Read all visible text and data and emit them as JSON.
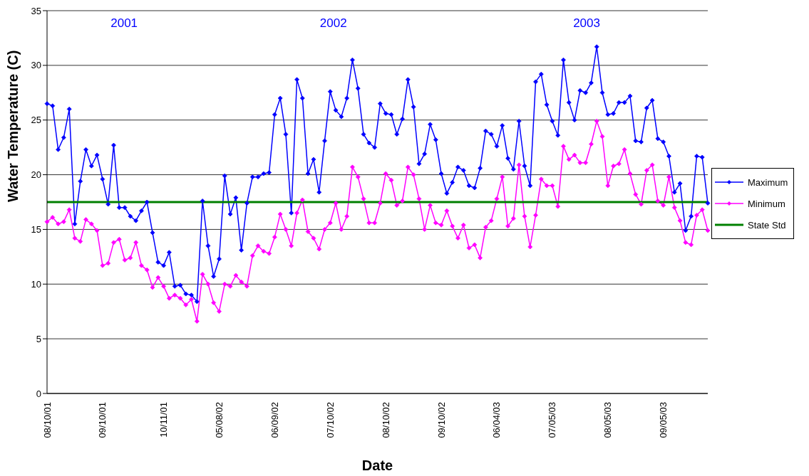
{
  "chart_data": {
    "type": "line",
    "xlabel": "Date",
    "ylabel": "Water Temperature (C)",
    "categories": [
      "08/10/01",
      null,
      null,
      null,
      null,
      null,
      null,
      null,
      null,
      null,
      "09/10/01",
      null,
      null,
      null,
      null,
      null,
      null,
      null,
      null,
      null,
      null,
      "10/11/01",
      null,
      null,
      null,
      null,
      null,
      null,
      null,
      null,
      null,
      "05/08/02",
      null,
      null,
      null,
      null,
      null,
      null,
      null,
      null,
      null,
      "06/09/02",
      null,
      null,
      null,
      null,
      null,
      null,
      null,
      null,
      null,
      "07/10/02",
      null,
      null,
      null,
      null,
      null,
      null,
      null,
      null,
      null,
      "08/10/02",
      null,
      null,
      null,
      null,
      null,
      null,
      null,
      null,
      null,
      "09/10/02",
      null,
      null,
      null,
      null,
      null,
      null,
      null,
      null,
      null,
      "06/04/03",
      null,
      null,
      null,
      null,
      null,
      null,
      null,
      null,
      null,
      "07/05/03",
      null,
      null,
      null,
      null,
      null,
      null,
      null,
      null,
      null,
      "08/05/03",
      null,
      null,
      null,
      null,
      null,
      null,
      null,
      null,
      null,
      "09/05/03",
      null,
      null,
      null,
      null,
      null,
      null,
      null,
      null
    ],
    "series": [
      {
        "name": "Maximum",
        "color": "#0000ff",
        "values": [
          26.5,
          26.3,
          22.3,
          23.4,
          26,
          15.5,
          19.4,
          22.3,
          20.8,
          21.8,
          19.6,
          17.3,
          22.7,
          17,
          17,
          16.2,
          15.8,
          16.7,
          17.5,
          14.7,
          12,
          11.7,
          12.9,
          9.8,
          9.9,
          9.1,
          9,
          8.4,
          17.6,
          13.5,
          10.7,
          12.3,
          19.9,
          16.4,
          17.9,
          13.1,
          17.4,
          19.8,
          19.8,
          20.1,
          20.2,
          25.5,
          27,
          23.7,
          16.5,
          28.7,
          27,
          20.1,
          21.4,
          18.4,
          23.1,
          27.6,
          25.9,
          25.3,
          27,
          30.5,
          27.9,
          23.7,
          22.9,
          22.5,
          26.5,
          25.6,
          25.5,
          23.7,
          25.1,
          28.7,
          26.2,
          21,
          21.9,
          24.6,
          23.2,
          20.1,
          18.3,
          19.3,
          20.7,
          20.4,
          19,
          18.8,
          20.6,
          24,
          23.7,
          22.6,
          24.5,
          21.5,
          20.5,
          24.9,
          20.8,
          19,
          28.5,
          29.2,
          26.4,
          24.9,
          23.6,
          30.5,
          26.6,
          25,
          27.7,
          27.5,
          28.4,
          31.7,
          27.5,
          25.5,
          25.6,
          26.6,
          26.6,
          27.2,
          23.1,
          23,
          26.1,
          26.8,
          23.3,
          23,
          21.7,
          18.4,
          19.2,
          14.9,
          16.2,
          21.7,
          21.6,
          17.4
        ]
      },
      {
        "name": "Minimum",
        "color": "#ff00ff",
        "values": [
          15.7,
          16.1,
          15.5,
          15.7,
          16.8,
          14.2,
          13.9,
          15.9,
          15.5,
          14.9,
          11.7,
          11.9,
          13.8,
          14.1,
          12.2,
          12.4,
          13.8,
          11.7,
          11.3,
          9.7,
          10.6,
          9.8,
          8.7,
          9,
          8.7,
          8.1,
          8.6,
          6.6,
          10.9,
          10,
          8.3,
          7.5,
          10,
          9.8,
          10.8,
          10.2,
          9.8,
          12.6,
          13.5,
          13,
          12.8,
          14.3,
          16.4,
          15,
          13.5,
          16.5,
          17.7,
          14.8,
          14.2,
          13.2,
          15,
          15.6,
          17.4,
          15,
          16.2,
          20.7,
          19.8,
          17.8,
          15.6,
          15.6,
          17.4,
          20.1,
          19.5,
          17.2,
          17.6,
          20.7,
          20,
          17.8,
          15,
          17.2,
          15.6,
          15.4,
          16.7,
          15.3,
          14.2,
          15.4,
          13.3,
          13.6,
          12.4,
          15.2,
          15.8,
          17.8,
          19.8,
          15.3,
          16,
          20.9,
          16.2,
          13.4,
          16.3,
          19.6,
          19,
          19,
          17.1,
          22.6,
          21.4,
          21.8,
          21.1,
          21.1,
          22.8,
          24.9,
          23.5,
          19,
          20.8,
          21,
          22.3,
          20.1,
          18.2,
          17.3,
          20.4,
          20.9,
          17.6,
          17.2,
          19.8,
          17,
          15.8,
          13.8,
          13.6,
          16.3,
          16.8,
          14.9
        ]
      }
    ],
    "ref_lines": [
      {
        "axis": "y",
        "value": 17.5,
        "label": "State Std",
        "color": "#008000"
      }
    ],
    "annotations": [
      "2001",
      "2002",
      "2003"
    ],
    "ylim": [
      0,
      35
    ],
    "yticks": [
      0,
      5,
      10,
      15,
      20,
      25,
      30,
      35
    ],
    "grid": "y",
    "legend": "right",
    "marker": "diamond",
    "line_style": "solid"
  }
}
